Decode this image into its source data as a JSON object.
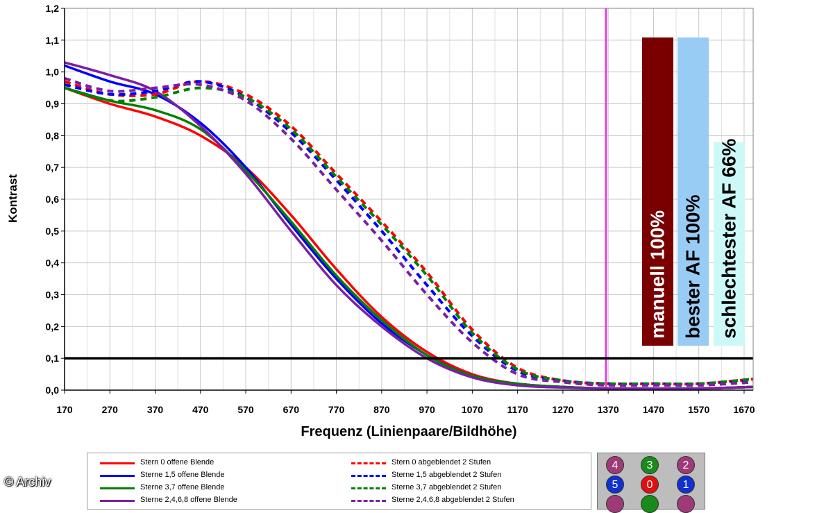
{
  "chart_data": {
    "type": "line",
    "xlabel": "Frequenz (Linienpaare/Bildhöhe)",
    "ylabel": "Kontrast",
    "xlim": [
      170,
      1690
    ],
    "ylim": [
      0,
      1.2
    ],
    "xticks": [
      170,
      270,
      370,
      470,
      570,
      670,
      770,
      870,
      970,
      1070,
      1170,
      1270,
      1370,
      1470,
      1570,
      1670
    ],
    "yticks": [
      "0,0",
      "0,1",
      "0,2",
      "0,3",
      "0,4",
      "0,5",
      "0,6",
      "0,7",
      "0,8",
      "0,9",
      "1,0",
      "1,1",
      "1,2"
    ],
    "grid": true,
    "reference_line_y": 0.1,
    "marker_line_x": 1365,
    "marker_line_color": "#e040e0",
    "bars": [
      {
        "label": "manuell 100%",
        "value": 100,
        "color": "#7a0000",
        "text_color": "#ffffff"
      },
      {
        "label": "bester AF 100%",
        "value": 100,
        "color": "#99ccf5",
        "text_color": "#000000"
      },
      {
        "label": "schlechtester AF 66%",
        "value": 66,
        "color": "#ccf8f8",
        "text_color": "#000000"
      }
    ],
    "series": [
      {
        "name": "Stern 0 offene Blende",
        "color": "#ff0000",
        "dash": false,
        "x": [
          170,
          270,
          370,
          470,
          570,
          670,
          770,
          870,
          970,
          1070,
          1170,
          1270,
          1370,
          1470,
          1570,
          1690
        ],
        "y": [
          0.95,
          0.9,
          0.86,
          0.8,
          0.7,
          0.55,
          0.38,
          0.23,
          0.12,
          0.05,
          0.02,
          0.01,
          0.005,
          0.005,
          0.005,
          0.01
        ]
      },
      {
        "name": "Sterne 1,5 offene Blende",
        "color": "#0000ff",
        "dash": false,
        "x": [
          170,
          270,
          370,
          470,
          570,
          670,
          770,
          870,
          970,
          1070,
          1170,
          1270,
          1370,
          1470,
          1570,
          1690
        ],
        "y": [
          1.02,
          0.97,
          0.93,
          0.84,
          0.7,
          0.52,
          0.35,
          0.21,
          0.11,
          0.045,
          0.02,
          0.01,
          0.005,
          0.005,
          0.005,
          0.01
        ]
      },
      {
        "name": "Sterne 3,7 offene Blende",
        "color": "#008000",
        "dash": false,
        "x": [
          170,
          270,
          370,
          470,
          570,
          670,
          770,
          870,
          970,
          1070,
          1170,
          1270,
          1370,
          1470,
          1570,
          1690
        ],
        "y": [
          0.95,
          0.91,
          0.88,
          0.82,
          0.69,
          0.53,
          0.36,
          0.22,
          0.11,
          0.045,
          0.02,
          0.01,
          0.005,
          0.005,
          0.005,
          0.01
        ]
      },
      {
        "name": "Sterne 2,4,6,8 offene Blende",
        "color": "#7b1fa2",
        "dash": false,
        "x": [
          170,
          270,
          370,
          470,
          570,
          670,
          770,
          870,
          970,
          1070,
          1170,
          1270,
          1370,
          1470,
          1570,
          1690
        ],
        "y": [
          1.03,
          0.99,
          0.94,
          0.83,
          0.68,
          0.5,
          0.33,
          0.2,
          0.1,
          0.04,
          0.015,
          0.008,
          0.005,
          0.005,
          0.005,
          0.01
        ]
      },
      {
        "name": "Stern 0 abgeblendet 2 Stufen",
        "color": "#ff0000",
        "dash": true,
        "x": [
          170,
          270,
          370,
          470,
          570,
          670,
          770,
          870,
          970,
          1070,
          1170,
          1270,
          1370,
          1470,
          1570,
          1690
        ],
        "y": [
          0.97,
          0.93,
          0.93,
          0.97,
          0.93,
          0.83,
          0.68,
          0.53,
          0.37,
          0.19,
          0.07,
          0.03,
          0.02,
          0.02,
          0.02,
          0.035
        ]
      },
      {
        "name": "Sterne 1,5 abgeblendet 2 Stufen",
        "color": "#0000ff",
        "dash": true,
        "x": [
          170,
          270,
          370,
          470,
          570,
          670,
          770,
          870,
          970,
          1070,
          1170,
          1270,
          1370,
          1470,
          1570,
          1690
        ],
        "y": [
          0.96,
          0.93,
          0.94,
          0.97,
          0.92,
          0.81,
          0.66,
          0.5,
          0.33,
          0.17,
          0.06,
          0.03,
          0.02,
          0.02,
          0.02,
          0.03
        ]
      },
      {
        "name": "Sterne 3,7 abgeblendet 2 Stufen",
        "color": "#008000",
        "dash": true,
        "x": [
          170,
          270,
          370,
          470,
          570,
          670,
          770,
          870,
          970,
          1070,
          1170,
          1270,
          1370,
          1470,
          1570,
          1690
        ],
        "y": [
          0.95,
          0.91,
          0.92,
          0.95,
          0.92,
          0.82,
          0.67,
          0.52,
          0.36,
          0.18,
          0.065,
          0.03,
          0.02,
          0.02,
          0.02,
          0.035
        ]
      },
      {
        "name": "Sterne 2,4,6,8 abgeblendet 2 Stufen",
        "color": "#7b1fa2",
        "dash": true,
        "x": [
          170,
          270,
          370,
          470,
          570,
          670,
          770,
          870,
          970,
          1070,
          1170,
          1270,
          1370,
          1470,
          1570,
          1690
        ],
        "y": [
          0.98,
          0.94,
          0.95,
          0.96,
          0.91,
          0.79,
          0.63,
          0.47,
          0.3,
          0.15,
          0.05,
          0.025,
          0.015,
          0.015,
          0.015,
          0.025
        ]
      }
    ]
  },
  "sensor_map": {
    "background": "#bdbdbd",
    "dots": [
      {
        "label": "4",
        "color": "#9e3a78"
      },
      {
        "label": "3",
        "color": "#1a8a1a"
      },
      {
        "label": "2",
        "color": "#9e3a78"
      },
      {
        "label": "5",
        "color": "#1030d0"
      },
      {
        "label": "0",
        "color": "#e01010"
      },
      {
        "label": "1",
        "color": "#1030d0"
      }
    ]
  },
  "watermark": "© Archiv"
}
